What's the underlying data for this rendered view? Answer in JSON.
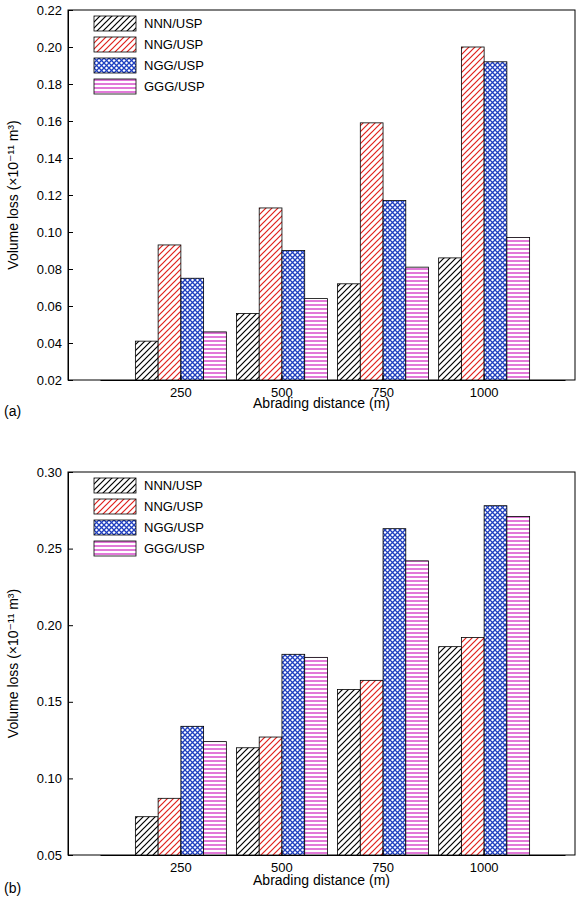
{
  "chart_data": [
    {
      "type": "bar",
      "title": "(a)",
      "x_label": "Abrading distance (m)",
      "y_label": "Volume loss (×10⁻¹¹ m³)",
      "categories": [
        "250",
        "500",
        "750",
        "1000"
      ],
      "series": [
        {
          "name": "NNN/USP",
          "color": "#000000",
          "values": [
            0.041,
            0.056,
            0.072,
            0.086
          ]
        },
        {
          "name": "NNG/USP",
          "color": "#e0201b",
          "values": [
            0.093,
            0.113,
            0.159,
            0.2
          ]
        },
        {
          "name": "NGG/USP",
          "color": "#1f3fbf",
          "values": [
            0.075,
            0.09,
            0.117,
            0.192
          ]
        },
        {
          "name": "GGG/USP",
          "color": "#d020c0",
          "values": [
            0.046,
            0.064,
            0.081,
            0.097
          ]
        }
      ],
      "ylim": [
        0.02,
        0.22
      ],
      "yticks": [
        0.02,
        0.04,
        0.06,
        0.08,
        {
          "value": 0.1,
          "label": "0.10"
        },
        0.12,
        0.14,
        0.16,
        0.18,
        {
          "value": 0.2,
          "label": "0.20"
        },
        0.22
      ],
      "legend": "upper left"
    },
    {
      "type": "bar",
      "title": "(b)",
      "x_label": "Abrading distance (m)",
      "y_label": "Volume loss (×10⁻¹¹ m³)",
      "categories": [
        "250",
        "500",
        "750",
        "1000"
      ],
      "series": [
        {
          "name": "NNN/USP",
          "color": "#000000",
          "values": [
            0.075,
            0.12,
            0.158,
            0.186
          ]
        },
        {
          "name": "NNG/USP",
          "color": "#e0201b",
          "values": [
            0.087,
            0.127,
            0.164,
            0.192
          ]
        },
        {
          "name": "NGG/USP",
          "color": "#1f3fbf",
          "values": [
            0.134,
            0.181,
            0.263,
            0.278
          ]
        },
        {
          "name": "GGG/USP",
          "color": "#d020c0",
          "values": [
            0.124,
            0.179,
            0.242,
            0.271
          ]
        }
      ],
      "ylim": [
        0.05,
        0.3
      ],
      "yticks": [
        0.05,
        {
          "value": 0.1,
          "label": "0.10"
        },
        0.15,
        {
          "value": 0.2,
          "label": "0.20"
        },
        0.25,
        {
          "value": 0.3,
          "label": "0.30"
        }
      ],
      "legend": "upper left"
    }
  ]
}
